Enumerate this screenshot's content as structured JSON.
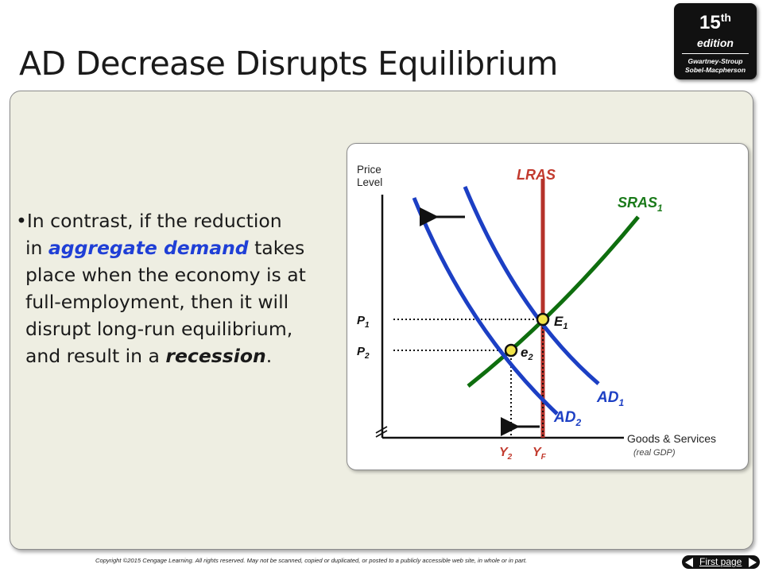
{
  "slide": {
    "title": "AD Decrease Disrupts Equilibrium",
    "bullet_lines": [
      {
        "parts": [
          "•In contrast, if the reduction"
        ]
      },
      {
        "parts": [
          "in ",
          "aggregate demand",
          " takes"
        ]
      },
      {
        "parts": [
          "place when the economy is at"
        ]
      },
      {
        "parts": [
          "full-employment, then it will"
        ]
      },
      {
        "parts": [
          "disrupt long-run equilibrium,"
        ]
      },
      {
        "parts": [
          "and result in a ",
          "recession",
          "."
        ]
      }
    ]
  },
  "badge": {
    "edition_number": "15",
    "edition_suffix": "th",
    "edition_word": "edition",
    "authors_line1": "Gwartney-Stroup",
    "authors_line2": "Sobel-Macpherson"
  },
  "footer": {
    "copyright": "Copyright ©2015 Cengage Learning. All rights reserved. May not be scanned, copied or duplicated, or posted to a publicly accessible web site, in whole or in part.",
    "nav_label": "First page"
  },
  "diagram": {
    "y_axis_label_1": "Price",
    "y_axis_label_2": "Level",
    "x_axis_label": "Goods & Services",
    "x_axis_sublabel": "(real GDP)",
    "lras_label": "LRAS",
    "sras": {
      "main": "SRAS",
      "sub": "1"
    },
    "ad1": {
      "main": "AD",
      "sub": "1"
    },
    "ad2": {
      "main": "AD",
      "sub": "2"
    },
    "e1": {
      "main": "E",
      "sub": "1"
    },
    "e2": {
      "main": "e",
      "sub": "2"
    },
    "p1": {
      "main": "P",
      "sub": "1"
    },
    "p2": {
      "main": "P",
      "sub": "2"
    },
    "y2": {
      "main": "Y",
      "sub": "2"
    },
    "yf": {
      "main": "Y",
      "sub": "F"
    },
    "colors": {
      "ad": "#1c3fc4",
      "sras": "#0e6e0e",
      "lras": "#b5322a",
      "label_red": "#c23a2e",
      "label_green": "#1a7a1a",
      "label_blue": "#1c3fc4",
      "point_fill": "#f2e44a"
    }
  }
}
